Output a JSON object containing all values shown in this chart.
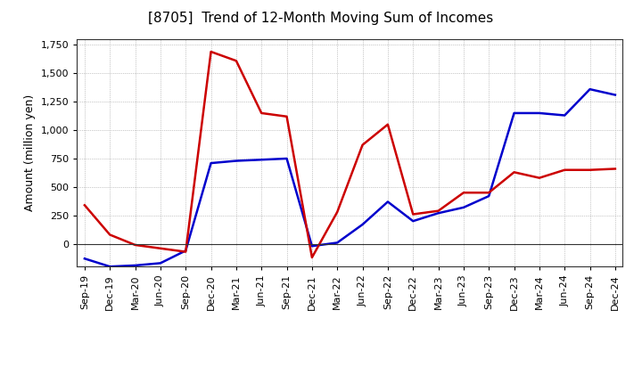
{
  "title": "[8705]  Trend of 12-Month Moving Sum of Incomes",
  "ylabel": "Amount (million yen)",
  "xlabels": [
    "Sep-19",
    "Dec-19",
    "Mar-20",
    "Jun-20",
    "Sep-20",
    "Dec-20",
    "Mar-21",
    "Jun-21",
    "Sep-21",
    "Dec-21",
    "Mar-22",
    "Jun-22",
    "Sep-22",
    "Dec-22",
    "Mar-23",
    "Jun-23",
    "Sep-23",
    "Dec-23",
    "Mar-24",
    "Jun-24",
    "Sep-24",
    "Dec-24"
  ],
  "ordinary_income": [
    -130,
    -200,
    -190,
    -170,
    -60,
    710,
    730,
    740,
    750,
    -20,
    10,
    170,
    370,
    200,
    270,
    320,
    420,
    1150,
    1150,
    1130,
    1360,
    1310
  ],
  "net_income": [
    340,
    80,
    -10,
    -40,
    -70,
    1690,
    1610,
    1150,
    1120,
    -120,
    280,
    870,
    1050,
    260,
    290,
    450,
    450,
    630,
    580,
    650,
    650,
    660
  ],
  "ordinary_color": "#0000cc",
  "net_color": "#cc0000",
  "ylim": [
    -200,
    1800
  ],
  "yticks": [
    0,
    250,
    500,
    750,
    1000,
    1250,
    1500,
    1750
  ],
  "ytick_labels": [
    "0",
    "250",
    "500",
    "750",
    "1,000",
    "1,250",
    "1,500",
    "1,750"
  ],
  "background_color": "#ffffff",
  "plot_bg_color": "#ffffff",
  "grid_color": "#999999",
  "line_width": 1.8,
  "title_fontsize": 11,
  "tick_fontsize": 8,
  "ylabel_fontsize": 9
}
